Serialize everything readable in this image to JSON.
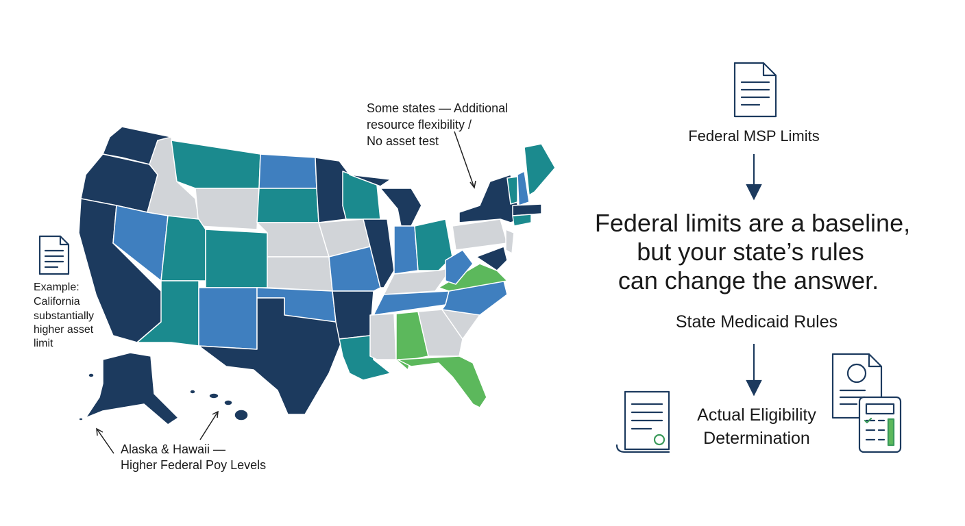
{
  "map": {
    "annotations": [
      {
        "lines": [
          "Some states — Additional",
          "resource flexibility /",
          "No asset test"
        ]
      },
      {
        "lines": [
          "Example:",
          "California",
          "substantially",
          "higher asset",
          "limit"
        ]
      },
      {
        "lines": [
          "Alaska & Hawaii —",
          "Higher Federal Poy Levels"
        ]
      }
    ]
  },
  "flow": {
    "top": "Federal MSP Limits",
    "headline": [
      "Federal limits are a baseline,",
      "but your state’s rules",
      "can change the answer."
    ],
    "middle": "State Medicaid Rules",
    "bottom": [
      "Actual Eligibility",
      "Determination"
    ]
  }
}
